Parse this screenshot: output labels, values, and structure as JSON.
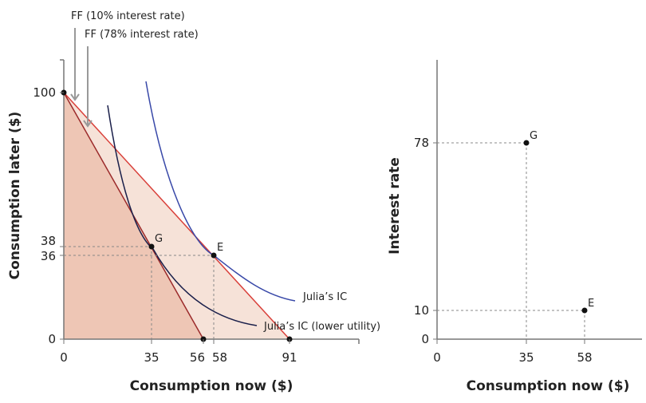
{
  "chart_data": [
    {
      "type": "line",
      "xlabel": "Consumption now ($)",
      "ylabel": "Consumption later ($)",
      "xticks": [
        0,
        35,
        56,
        58,
        91
      ],
      "yticks": [
        0,
        36,
        38,
        100
      ],
      "grid": false,
      "budget_lines": [
        {
          "name": "FF (10% interest rate)",
          "from": [
            0,
            100
          ],
          "to": [
            91,
            0
          ],
          "color": "#d9403a",
          "fill": "#f6e2d8"
        },
        {
          "name": "FF (78% interest rate)",
          "from": [
            0,
            100
          ],
          "to": [
            56,
            0
          ],
          "color": "#9b2a2a",
          "fill": "#eec6b5"
        }
      ],
      "curves": [
        {
          "name": "Julia’s IC",
          "color": "#3848a8"
        },
        {
          "name": "Julia’s IC (lower utility)",
          "color": "#1a1f4a"
        }
      ],
      "points": [
        {
          "label": "G",
          "x": 35,
          "y": 38
        },
        {
          "label": "E",
          "x": 58,
          "y": 36
        }
      ]
    },
    {
      "type": "scatter",
      "xlabel": "Consumption now ($)",
      "ylabel": "Interest rate",
      "xticks": [
        0,
        35,
        58
      ],
      "yticks": [
        0,
        10,
        78
      ],
      "grid": false,
      "points": [
        {
          "label": "G",
          "x": 35,
          "y": 78
        },
        {
          "label": "E",
          "x": 58,
          "y": 10
        }
      ]
    }
  ]
}
